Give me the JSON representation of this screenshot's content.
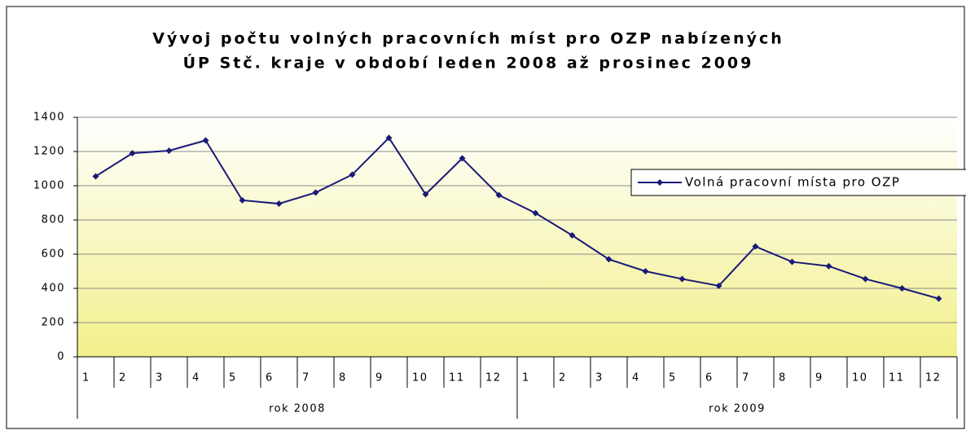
{
  "chart_data": {
    "type": "line",
    "title": [
      "Vývoj počtu volných pracovních míst pro OZP nabízených",
      "ÚP Stč. kraje v období leden 2008 až prosinec 2009"
    ],
    "category_groups": [
      {
        "name": "rok 2008",
        "categories": [
          "1",
          "2",
          "3",
          "4",
          "5",
          "6",
          "7",
          "8",
          "9",
          "10",
          "11",
          "12"
        ]
      },
      {
        "name": "rok 2009",
        "categories": [
          "1",
          "2",
          "3",
          "4",
          "5",
          "6",
          "7",
          "8",
          "9",
          "10",
          "11",
          "12"
        ]
      }
    ],
    "series": [
      {
        "name": "Volná pracovní místa pro OZP",
        "color": "#1a1a78",
        "values": [
          1055,
          1190,
          1205,
          1265,
          915,
          895,
          960,
          1065,
          1280,
          950,
          1160,
          945,
          840,
          710,
          570,
          500,
          455,
          415,
          645,
          555,
          530,
          455,
          400,
          340
        ]
      }
    ],
    "ylim": [
      0,
      1400
    ],
    "yticks": [
      0,
      200,
      400,
      600,
      800,
      1000,
      1200,
      1400
    ],
    "grid": true,
    "legend": "right"
  }
}
